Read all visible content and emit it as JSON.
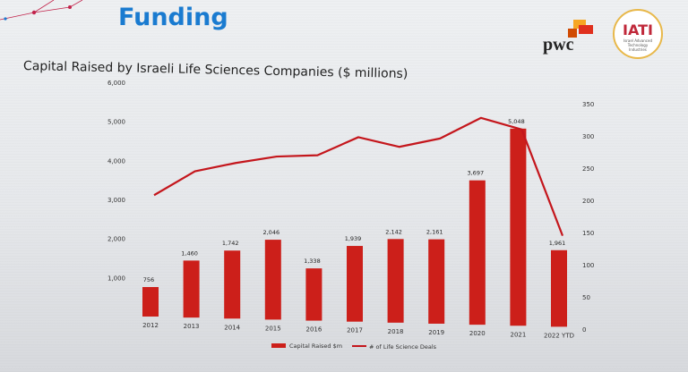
{
  "slide": {
    "heading": "Funding",
    "subtitle": "Capital Raised by Israeli Life Sciences Companies ($ millions)"
  },
  "logos": {
    "pwc": {
      "text": "pwc"
    },
    "iati": {
      "text": "IATI",
      "subtext": "Israel Advanced Technology Industries"
    }
  },
  "chart_data": {
    "type": "bar",
    "title": "Capital Raised by Israeli Life Sciences Companies ($ millions)",
    "categories": [
      "2012",
      "2013",
      "2014",
      "2015",
      "2016",
      "2017",
      "2018",
      "2019",
      "2020",
      "2021",
      "2022 YTD"
    ],
    "series": [
      {
        "name": "Capital Raised $m",
        "type": "bar",
        "axis": "left",
        "color": "#cc1f1a",
        "values": [
          756,
          1460,
          1742,
          2046,
          1338,
          1939,
          2142,
          2161,
          3697,
          5048,
          1961
        ]
      },
      {
        "name": "# of Life Science Deals",
        "type": "line",
        "axis": "right",
        "color": "#c4161c",
        "values": [
          208,
          245,
          258,
          268,
          270,
          298,
          283,
          296,
          328,
          310,
          145
        ]
      }
    ],
    "yleft_ticks": [
      "1,000",
      "2,000",
      "3,000",
      "4,000",
      "5,000",
      "6,000"
    ],
    "yright_ticks": [
      "0",
      "50",
      "100",
      "150",
      "200",
      "250",
      "300",
      "350"
    ],
    "ylim_left": [
      0,
      6000
    ],
    "ylim_right": [
      0,
      350
    ],
    "legend": "bottom",
    "grid": false
  }
}
